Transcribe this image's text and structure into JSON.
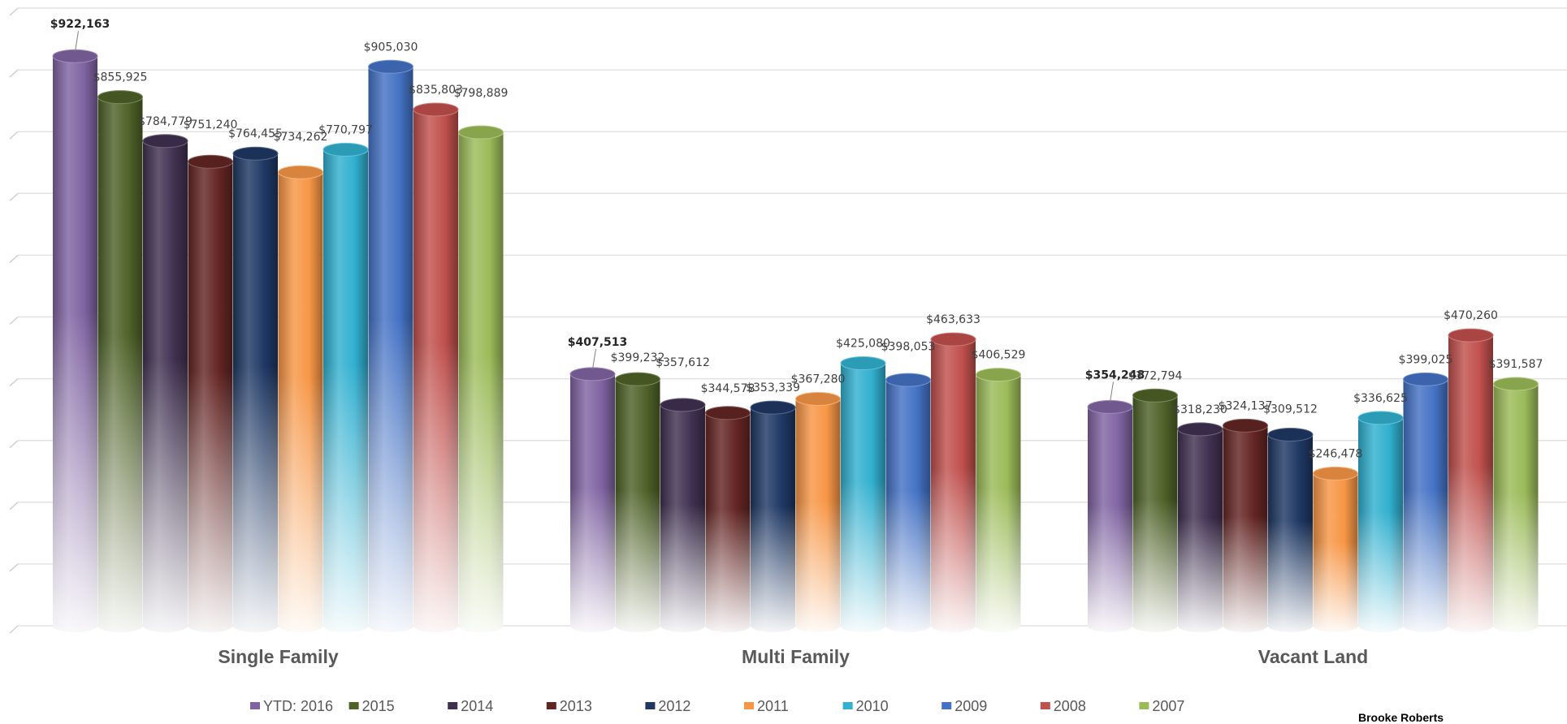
{
  "chart_data": {
    "type": "bar",
    "style": "3d-cylinder",
    "categories": [
      "Single Family",
      "Multi Family",
      "Vacant Land"
    ],
    "series": [
      {
        "name": "YTD: 2016",
        "color": "#8064A2",
        "values": [
          922163,
          407513,
          354248
        ],
        "labels": [
          "$922,163",
          "$407,513",
          "$354,248"
        ],
        "bold_labels": true
      },
      {
        "name": "2015",
        "color": "#4F6228",
        "values": [
          855925,
          399232,
          372794
        ],
        "labels": [
          "$855,925",
          "$399,232",
          "$372,794"
        ]
      },
      {
        "name": "2014",
        "color": "#403151",
        "values": [
          784779,
          357612,
          318230
        ],
        "labels": [
          "$784,779",
          "$357,612",
          "$318,230"
        ]
      },
      {
        "name": "2013",
        "color": "#632523",
        "values": [
          751240,
          344578,
          324137
        ],
        "labels": [
          "$751,240",
          "$344,578",
          "$324,137"
        ]
      },
      {
        "name": "2012",
        "color": "#1F3864",
        "values": [
          764455,
          353339,
          309512
        ],
        "labels": [
          "$764,455",
          "$353,339",
          "$309,512"
        ]
      },
      {
        "name": "2011",
        "color": "#F79646",
        "values": [
          734262,
          367280,
          246478
        ],
        "labels": [
          "$734,262",
          "$367,280",
          "$246,478"
        ]
      },
      {
        "name": "2010",
        "color": "#31B0CF",
        "values": [
          770797,
          425080,
          336625
        ],
        "labels": [
          "$770,797",
          "$425,080",
          "$336,625"
        ]
      },
      {
        "name": "2009",
        "color": "#4472C4",
        "values": [
          905030,
          398053,
          399025
        ],
        "labels": [
          "$905,030",
          "$398,053",
          "$399,025"
        ]
      },
      {
        "name": "2008",
        "color": "#C0504D",
        "values": [
          835803,
          463633,
          470260
        ],
        "labels": [
          "$835,803",
          "$463,633",
          "$470,260"
        ]
      },
      {
        "name": "2007",
        "color": "#9BBB59",
        "values": [
          798889,
          406529,
          391587
        ],
        "labels": [
          "$798,889",
          "$406,529",
          "$391,587"
        ]
      }
    ],
    "ylim": [
      0,
      1000000
    ],
    "grid": true,
    "legend": "bottom"
  },
  "footer_note": "Brooke Roberts"
}
